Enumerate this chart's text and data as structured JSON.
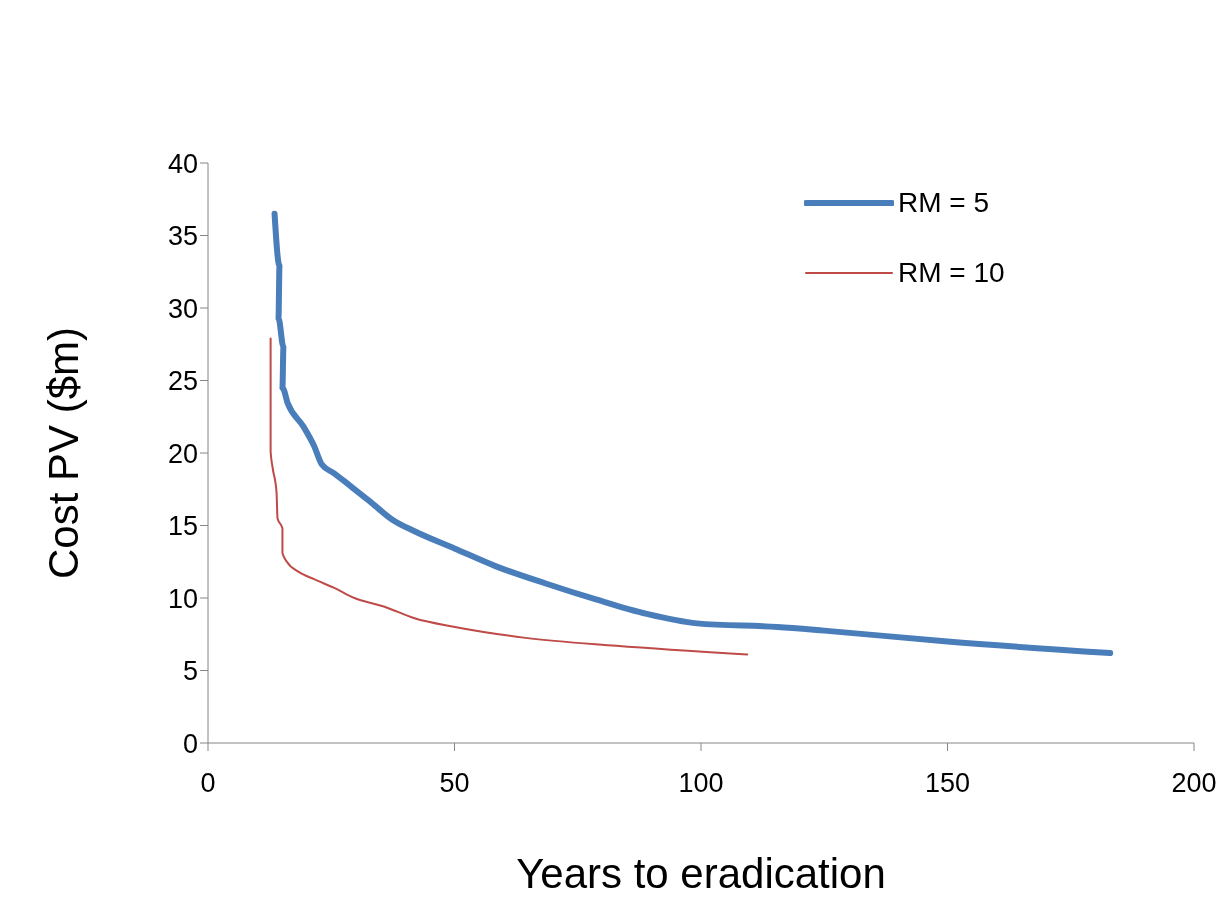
{
  "chart_data": {
    "type": "line",
    "xlabel": "Years to eradication",
    "ylabel": "Cost PV ($m)",
    "xlim": [
      0,
      200
    ],
    "xticks": [
      0,
      50,
      100,
      150,
      200
    ],
    "ylim": [
      0,
      40
    ],
    "yticks": [
      0,
      5,
      10,
      15,
      20,
      25,
      30,
      35,
      40
    ],
    "grid": false,
    "legend": "top right",
    "marker": "none",
    "line_style": "solid",
    "series": [
      {
        "name": "RM = 5",
        "color": "#4a7ebb",
        "x": [
          13.5,
          14.5,
          14.3,
          15.3,
          15.1,
          16.2,
          19.4,
          21.5,
          23.1,
          25.6,
          28.6,
          32.7,
          37.4,
          41.9,
          50.1,
          58.3,
          68.5,
          78.7,
          89,
          99.2,
          115.5,
          125,
          150,
          183
        ],
        "values": [
          36.5,
          32.9,
          29.3,
          27.3,
          24.5,
          23.4,
          21.8,
          20.5,
          19.2,
          18.6,
          17.8,
          16.7,
          15.4,
          14.6,
          13.4,
          12.2,
          11,
          9.9,
          8.9,
          8.25,
          8,
          7.75,
          7,
          6.2
        ]
      },
      {
        "name": "RM = 10",
        "color": "#be4b48",
        "x": [
          12.7,
          12.7,
          13.1,
          13.9,
          14.1,
          15.1,
          15.1,
          16,
          18.4,
          21.5,
          25.6,
          29.7,
          35.8,
          41.9,
          50.1,
          64.4,
          82.8,
          109.4
        ],
        "values": [
          27.9,
          20.1,
          19,
          17.3,
          15.5,
          14.8,
          13.1,
          12.5,
          11.8,
          11.3,
          10.7,
          10,
          9.4,
          8.6,
          8,
          7.25,
          6.7,
          6.1
        ]
      }
    ]
  }
}
